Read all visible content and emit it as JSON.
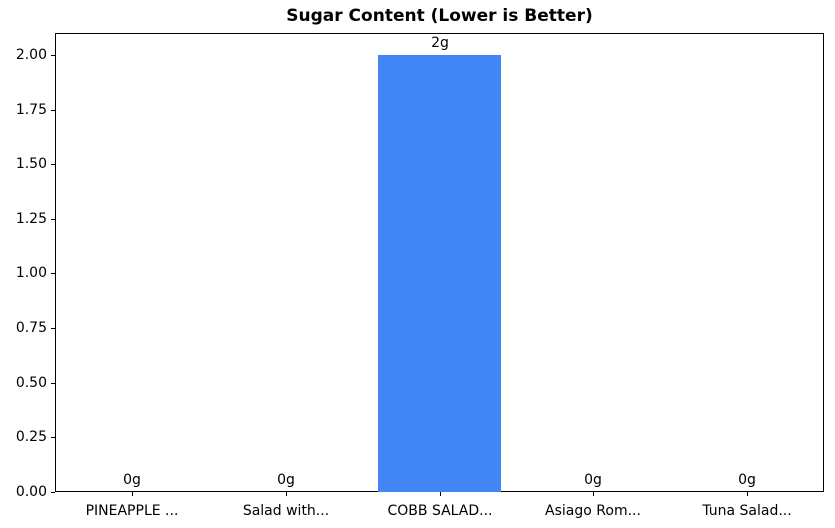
{
  "chart_data": {
    "type": "bar",
    "title": "Sugar Content (Lower is Better)",
    "categories": [
      "PINEAPPLE ...",
      "Salad with...",
      "COBB SALAD...",
      "Asiago Rom...",
      "Tuna Salad..."
    ],
    "values": [
      0,
      0,
      2,
      0,
      0
    ],
    "bar_labels": [
      "0g",
      "0g",
      "2g",
      "0g",
      "0g"
    ],
    "xlabel": "",
    "ylabel": "",
    "ylim": [
      0,
      2.1
    ],
    "yticks": [
      0,
      0.25,
      0.5,
      0.75,
      1,
      1.25,
      1.5,
      1.75,
      2
    ],
    "ytick_labels": [
      "0.00",
      "0.25",
      "0.50",
      "0.75",
      "1.00",
      "1.25",
      "1.50",
      "1.75",
      "2.00"
    ],
    "grid": false,
    "legend": "none",
    "bar_color": "#4285F4",
    "axis_color": "#000000",
    "text_color": "#000000",
    "background_color": "#ffffff"
  }
}
